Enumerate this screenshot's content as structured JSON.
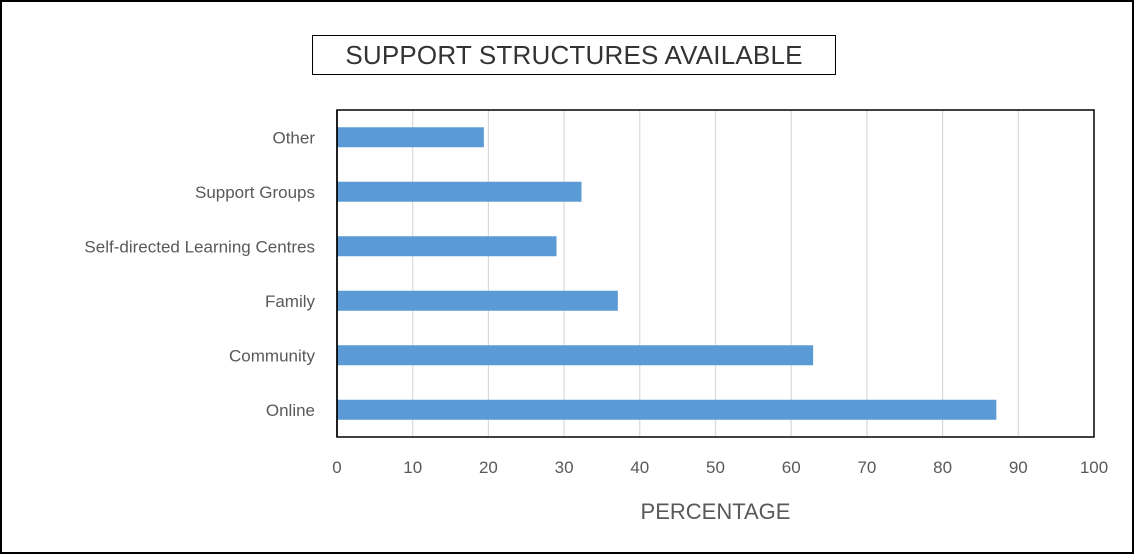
{
  "chart_data": {
    "type": "bar",
    "orientation": "horizontal",
    "title": "SUPPORT STRUCTURES AVAILABLE",
    "xlabel": "PERCENTAGE",
    "ylabel": "",
    "categories": [
      "Other",
      "Support Groups",
      "Self-directed Learning Centres",
      "Family",
      "Community",
      "Online"
    ],
    "values": [
      19.4,
      32.3,
      29.0,
      37.1,
      62.9,
      87.1
    ],
    "xlim": [
      0,
      100
    ],
    "x_ticks": [
      "0",
      "10",
      "20",
      "30",
      "40",
      "50",
      "60",
      "70",
      "80",
      "90",
      "100"
    ],
    "grid": "vertical",
    "legend": "none",
    "colors": {
      "bar": "#5b9bd5",
      "grid": "#d9d9d9",
      "axis": "#000000",
      "text": "#595959",
      "title_text": "#333333"
    }
  }
}
